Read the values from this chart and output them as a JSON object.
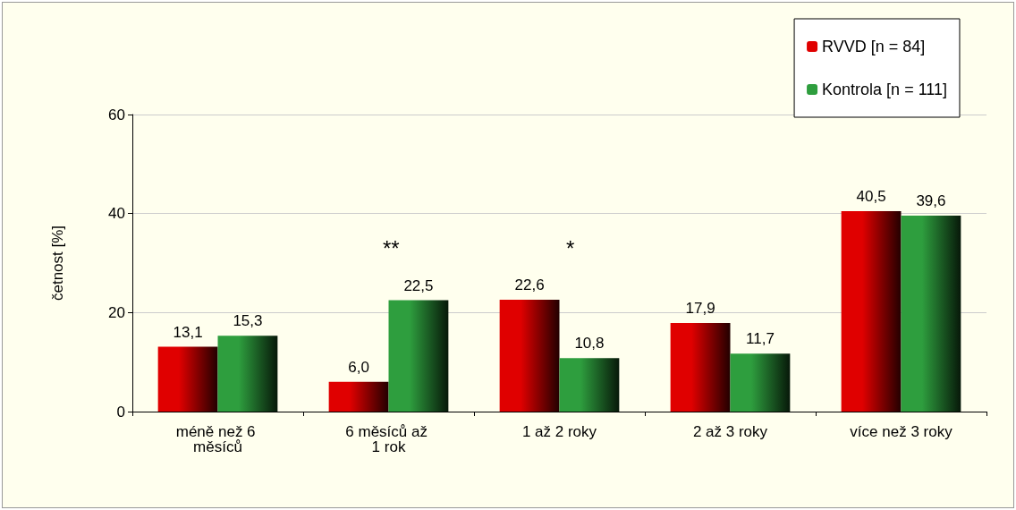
{
  "chart_data": {
    "type": "bar",
    "ylabel": "četnost [%]",
    "categories": [
      "méně než 6 měsíců",
      "6 měsíců až 1 rok",
      "1 až 2 roky",
      "2 až 3 roky",
      "více než 3 roky"
    ],
    "series": [
      {
        "name": "RVVD [n = 84]",
        "color": "#e00000",
        "values": [
          13.1,
          6.0,
          22.6,
          17.9,
          40.5
        ],
        "value_labels": [
          "13,1",
          "6,0",
          "22,6",
          "17,9",
          "40,5"
        ]
      },
      {
        "name": "Kontrola [n = 111]",
        "color": "#2e9e3e",
        "values": [
          15.3,
          22.5,
          10.8,
          11.7,
          39.6
        ],
        "value_labels": [
          "15,3",
          "22,5",
          "10,8",
          "11,7",
          "39,6"
        ]
      }
    ],
    "ylim": [
      0,
      60
    ],
    "yticks": [
      0,
      20,
      40,
      60
    ],
    "grid": "y",
    "legend": "top right",
    "annotations": [
      "**",
      "*"
    ]
  }
}
